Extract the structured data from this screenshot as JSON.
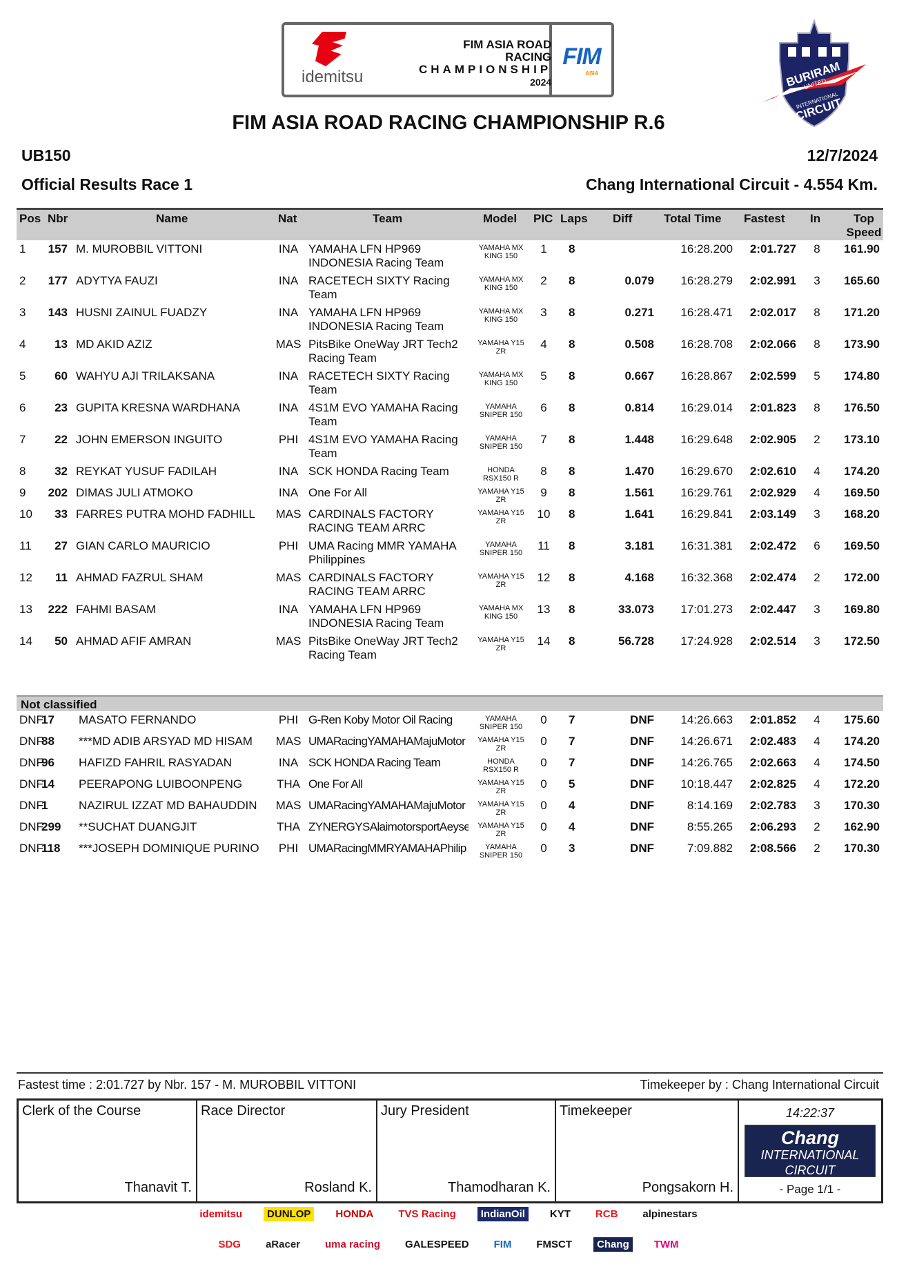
{
  "logos": {
    "idemitsu": "idemitsu",
    "championship": [
      "FIM ASIA ROAD RACING",
      "CHAMPIONSHIP",
      "2024"
    ],
    "fim": "FIM",
    "fim_sub": "ASIA",
    "circuit_badge": [
      "BURIRAM",
      "UNITED",
      "INTERNATIONAL",
      "CIRCUIT"
    ]
  },
  "title": "FIM ASIA ROAD RACING CHAMPIONSHIP R.6",
  "class": "UB150",
  "date": "12/7/2024",
  "subtitle": "Official Results Race 1",
  "circuit": "Chang International Circuit - 4.554 Km.",
  "columns": {
    "pos": "Pos",
    "nbr": "Nbr",
    "name": "Name",
    "nat": "Nat",
    "team": "Team",
    "model": "Model",
    "pic": "PIC",
    "laps": "Laps",
    "diff": "Diff",
    "total": "Total Time",
    "fastest": "Fastest",
    "in": "In",
    "top": "Top\nSpeed"
  },
  "results": [
    {
      "pos": "1",
      "nbr": "157",
      "name": "M. MUROBBIL VITTONI",
      "nat": "INA",
      "team": "YAMAHA LFN HP969\nINDONESIA Racing Team",
      "model": "YAMAHA MX\nKING 150",
      "pic": "1",
      "laps": "8",
      "diff": "",
      "total": "16:28.200",
      "fastest": "2:01.727",
      "in": "8",
      "top": "161.90"
    },
    {
      "pos": "2",
      "nbr": "177",
      "name": "ADYTYA FAUZI",
      "nat": "INA",
      "team": "RACETECH SIXTY Racing\nTeam",
      "model": "YAMAHA MX\nKING 150",
      "pic": "2",
      "laps": "8",
      "diff": "0.079",
      "total": "16:28.279",
      "fastest": "2:02.991",
      "in": "3",
      "top": "165.60"
    },
    {
      "pos": "3",
      "nbr": "143",
      "name": "HUSNI ZAINUL FUADZY",
      "nat": "INA",
      "team": "YAMAHA LFN HP969\nINDONESIA Racing Team",
      "model": "YAMAHA MX\nKING 150",
      "pic": "3",
      "laps": "8",
      "diff": "0.271",
      "total": "16:28.471",
      "fastest": "2:02.017",
      "in": "8",
      "top": "171.20"
    },
    {
      "pos": "4",
      "nbr": "13",
      "name": "MD AKID AZIZ",
      "nat": "MAS",
      "team": "PitsBike OneWay JRT Tech2\nRacing Team",
      "model": "YAMAHA Y15\nZR",
      "pic": "4",
      "laps": "8",
      "diff": "0.508",
      "total": "16:28.708",
      "fastest": "2:02.066",
      "in": "8",
      "top": "173.90"
    },
    {
      "pos": "5",
      "nbr": "60",
      "name": "WAHYU AJI TRILAKSANA",
      "nat": "INA",
      "team": "RACETECH SIXTY Racing\nTeam",
      "model": "YAMAHA MX\nKING 150",
      "pic": "5",
      "laps": "8",
      "diff": "0.667",
      "total": "16:28.867",
      "fastest": "2:02.599",
      "in": "5",
      "top": "174.80"
    },
    {
      "pos": "6",
      "nbr": "23",
      "name": "GUPITA KRESNA WARDHANA",
      "nat": "INA",
      "team": "4S1M EVO YAMAHA Racing\nTeam",
      "model": "YAMAHA\nSNIPER 150",
      "pic": "6",
      "laps": "8",
      "diff": "0.814",
      "total": "16:29.014",
      "fastest": "2:01.823",
      "in": "8",
      "top": "176.50"
    },
    {
      "pos": "7",
      "nbr": "22",
      "name": "JOHN EMERSON INGUITO",
      "nat": "PHI",
      "team": "4S1M EVO YAMAHA Racing\nTeam",
      "model": "YAMAHA\nSNIPER 150",
      "pic": "7",
      "laps": "8",
      "diff": "1.448",
      "total": "16:29.648",
      "fastest": "2:02.905",
      "in": "2",
      "top": "173.10"
    },
    {
      "pos": "8",
      "nbr": "32",
      "name": "REYKAT YUSUF FADILAH",
      "nat": "INA",
      "team": "SCK HONDA Racing Team",
      "model": "HONDA\nRSX150 R",
      "pic": "8",
      "laps": "8",
      "diff": "1.470",
      "total": "16:29.670",
      "fastest": "2:02.610",
      "in": "4",
      "top": "174.20"
    },
    {
      "pos": "9",
      "nbr": "202",
      "name": "DIMAS JULI ATMOKO",
      "nat": "INA",
      "team": "One For All",
      "model": "YAMAHA Y15\nZR",
      "pic": "9",
      "laps": "8",
      "diff": "1.561",
      "total": "16:29.761",
      "fastest": "2:02.929",
      "in": "4",
      "top": "169.50"
    },
    {
      "pos": "10",
      "nbr": "33",
      "name": "FARRES PUTRA MOHD FADHILL",
      "nat": "MAS",
      "team": "CARDINALS FACTORY\nRACING TEAM ARRC",
      "model": "YAMAHA Y15\nZR",
      "pic": "10",
      "laps": "8",
      "diff": "1.641",
      "total": "16:29.841",
      "fastest": "2:03.149",
      "in": "3",
      "top": "168.20"
    },
    {
      "pos": "11",
      "nbr": "27",
      "name": "GIAN CARLO MAURICIO",
      "nat": "PHI",
      "team": "UMA Racing MMR YAMAHA\nPhilippines",
      "model": "YAMAHA\nSNIPER 150",
      "pic": "11",
      "laps": "8",
      "diff": "3.181",
      "total": "16:31.381",
      "fastest": "2:02.472",
      "in": "6",
      "top": "169.50"
    },
    {
      "pos": "12",
      "nbr": "11",
      "name": "AHMAD FAZRUL SHAM",
      "nat": "MAS",
      "team": "CARDINALS FACTORY\nRACING TEAM ARRC",
      "model": "YAMAHA Y15\nZR",
      "pic": "12",
      "laps": "8",
      "diff": "4.168",
      "total": "16:32.368",
      "fastest": "2:02.474",
      "in": "2",
      "top": "172.00"
    },
    {
      "pos": "13",
      "nbr": "222",
      "name": "FAHMI BASAM",
      "nat": "INA",
      "team": "YAMAHA LFN HP969\nINDONESIA Racing Team",
      "model": "YAMAHA MX\nKING 150",
      "pic": "13",
      "laps": "8",
      "diff": "33.073",
      "total": "17:01.273",
      "fastest": "2:02.447",
      "in": "3",
      "top": "169.80"
    },
    {
      "pos": "14",
      "nbr": "50",
      "name": "AHMAD AFIF AMRAN",
      "nat": "MAS",
      "team": "PitsBike OneWay JRT Tech2\nRacing Team",
      "model": "YAMAHA Y15\nZR",
      "pic": "14",
      "laps": "8",
      "diff": "56.728",
      "total": "17:24.928",
      "fastest": "2:02.514",
      "in": "3",
      "top": "172.50"
    }
  ],
  "not_classified_label": "Not classified",
  "not_classified": [
    {
      "pos": "DNF",
      "nbr": "17",
      "name": "MASATO FERNANDO",
      "nat": "PHI",
      "team": "G-Ren Koby Motor Oil Racing",
      "model": "YAMAHA\nSNIPER 150",
      "pic": "0",
      "laps": "7",
      "diff": "DNF",
      "total": "14:26.663",
      "fastest": "2:01.852",
      "in": "4",
      "top": "175.60"
    },
    {
      "pos": "DNF",
      "nbr": "88",
      "name": "***MD ADIB ARSYAD MD HISAM",
      "nat": "MAS",
      "team": "UMARacingYAMAHAMajuMotor",
      "model": "YAMAHA Y15\nZR",
      "pic": "0",
      "laps": "7",
      "diff": "DNF",
      "total": "14:26.671",
      "fastest": "2:02.483",
      "in": "4",
      "top": "174.20"
    },
    {
      "pos": "DNF",
      "nbr": "96",
      "name": "HAFIZD FAHRIL RASYADAN",
      "nat": "INA",
      "team": "SCK HONDA Racing Team",
      "model": "HONDA\nRSX150 R",
      "pic": "0",
      "laps": "7",
      "diff": "DNF",
      "total": "14:26.765",
      "fastest": "2:02.663",
      "in": "4",
      "top": "174.50"
    },
    {
      "pos": "DNF",
      "nbr": "14",
      "name": "PEERAPONG LUIBOONPENG",
      "nat": "THA",
      "team": "One For All",
      "model": "YAMAHA Y15\nZR",
      "pic": "0",
      "laps": "5",
      "diff": "DNF",
      "total": "10:18.447",
      "fastest": "2:02.825",
      "in": "4",
      "top": "172.20"
    },
    {
      "pos": "DNF",
      "nbr": "1",
      "name": "NAZIRUL IZZAT MD BAHAUDDIN",
      "nat": "MAS",
      "team": "UMARacingYAMAHAMajuMotor",
      "model": "YAMAHA Y15\nZR",
      "pic": "0",
      "laps": "4",
      "diff": "DNF",
      "total": "8:14.169",
      "fastest": "2:02.783",
      "in": "3",
      "top": "170.30"
    },
    {
      "pos": "DNF",
      "nbr": "299",
      "name": "**SUCHAT DUANGJIT",
      "nat": "THA",
      "team": "ZYNERGYSAlaimotorsportAeyse",
      "model": "YAMAHA Y15\nZR",
      "pic": "0",
      "laps": "4",
      "diff": "DNF",
      "total": "8:55.265",
      "fastest": "2:06.293",
      "in": "2",
      "top": "162.90"
    },
    {
      "pos": "DNF",
      "nbr": "118",
      "name": "***JOSEPH DOMINIQUE PURINO",
      "nat": "PHI",
      "team": "UMARacingMMRYAMAHAPhilip",
      "model": "YAMAHA\nSNIPER 150",
      "pic": "0",
      "laps": "3",
      "diff": "DNF",
      "total": "7:09.882",
      "fastest": "2:08.566",
      "in": "2",
      "top": "170.30"
    }
  ],
  "footer": {
    "fastest_time": "Fastest time : 2:01.727  by Nbr.  157 - M. MUROBBIL VITTONI",
    "timekeeper_by": "Timekeeper by : Chang International Circuit",
    "signatures": [
      {
        "role": "Clerk of the Course",
        "name": "Thanavit T."
      },
      {
        "role": "Race Director",
        "name": "Rosland K."
      },
      {
        "role": "Jury President",
        "name": "Thamodharan K."
      },
      {
        "role": "Timekeeper",
        "name": "Pongsakorn H."
      }
    ],
    "time": "14:22:37",
    "chang_logo": [
      "Chang",
      "INTERNATIONAL",
      "CIRCUIT"
    ],
    "page": "- Page 1/1 -"
  },
  "sponsors_row1": [
    {
      "t": "idemitsu",
      "c": "#e60012",
      "bg": "#fff"
    },
    {
      "t": "DUNLOP",
      "c": "#111",
      "bg": "#ffe000"
    },
    {
      "t": "HONDA",
      "c": "#cc0000",
      "bg": "#fff"
    },
    {
      "t": "TVS Racing",
      "c": "#d7141a",
      "bg": "#fff"
    },
    {
      "t": "IndianOil",
      "c": "#fff",
      "bg": "#1c2a6b"
    },
    {
      "t": "KYT",
      "c": "#111",
      "bg": "#fff"
    },
    {
      "t": "RCB",
      "c": "#e31b23",
      "bg": "#fff"
    },
    {
      "t": "alpinestars",
      "c": "#111",
      "bg": "#fff"
    }
  ],
  "sponsors_row2": [
    {
      "t": "SDG",
      "c": "#e31b23",
      "bg": "#fff"
    },
    {
      "t": "aRacer",
      "c": "#222",
      "bg": "#fff"
    },
    {
      "t": "uma racing",
      "c": "#c8102e",
      "bg": "#fff"
    },
    {
      "t": "GALESPEED",
      "c": "#111",
      "bg": "#fff"
    },
    {
      "t": "FIM",
      "c": "#1565c0",
      "bg": "#fff"
    },
    {
      "t": "FMSCT",
      "c": "#111",
      "bg": "#fff"
    },
    {
      "t": "Chang",
      "c": "#fff",
      "bg": "#1a2450"
    },
    {
      "t": "TWM",
      "c": "#e0007a",
      "bg": "#fff"
    }
  ]
}
